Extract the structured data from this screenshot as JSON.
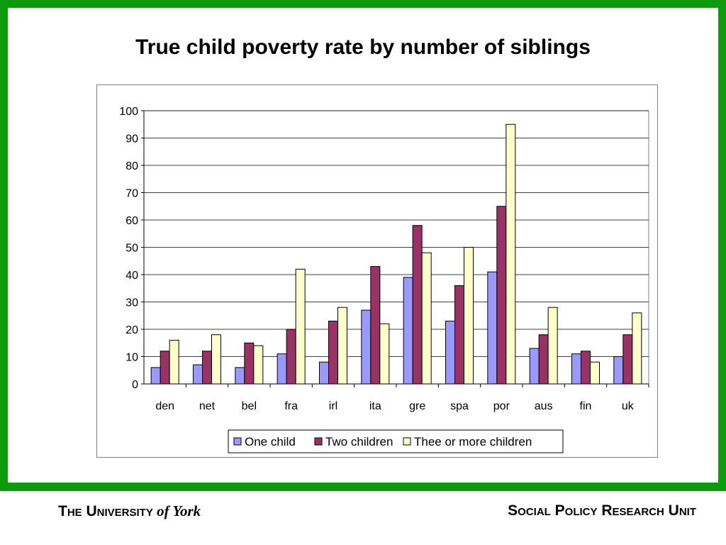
{
  "slide": {
    "title": "True child poverty rate by number of siblings"
  },
  "footer": {
    "university": "The University",
    "of_york": "of York",
    "unit": "Social Policy Research Unit"
  },
  "colors": {
    "border_green": "#0d9a0d",
    "one_child": "#9999ff",
    "two_children": "#993366",
    "three_plus": "#ffffcc"
  },
  "chart_data": {
    "type": "bar",
    "categories": [
      "den",
      "net",
      "bel",
      "fra",
      "irl",
      "ita",
      "gre",
      "spa",
      "por",
      "aus",
      "fin",
      "uk"
    ],
    "series": [
      {
        "name": "One child",
        "color": "#9999ff",
        "values": [
          6,
          7,
          6,
          11,
          8,
          27,
          39,
          23,
          41,
          13,
          11,
          10
        ]
      },
      {
        "name": "Two children",
        "color": "#993366",
        "values": [
          12,
          12,
          15,
          20,
          23,
          43,
          58,
          36,
          65,
          18,
          12,
          18
        ]
      },
      {
        "name": "Thee or more children",
        "color": "#ffffcc",
        "values": [
          16,
          18,
          14,
          42,
          28,
          22,
          48,
          50,
          95,
          28,
          8,
          26
        ]
      }
    ],
    "ylim": [
      0,
      100
    ],
    "yticks": [
      0,
      10,
      20,
      30,
      40,
      50,
      60,
      70,
      80,
      90,
      100
    ],
    "grid": true,
    "legend": "bottom",
    "title": "",
    "xlabel": "",
    "ylabel": ""
  }
}
